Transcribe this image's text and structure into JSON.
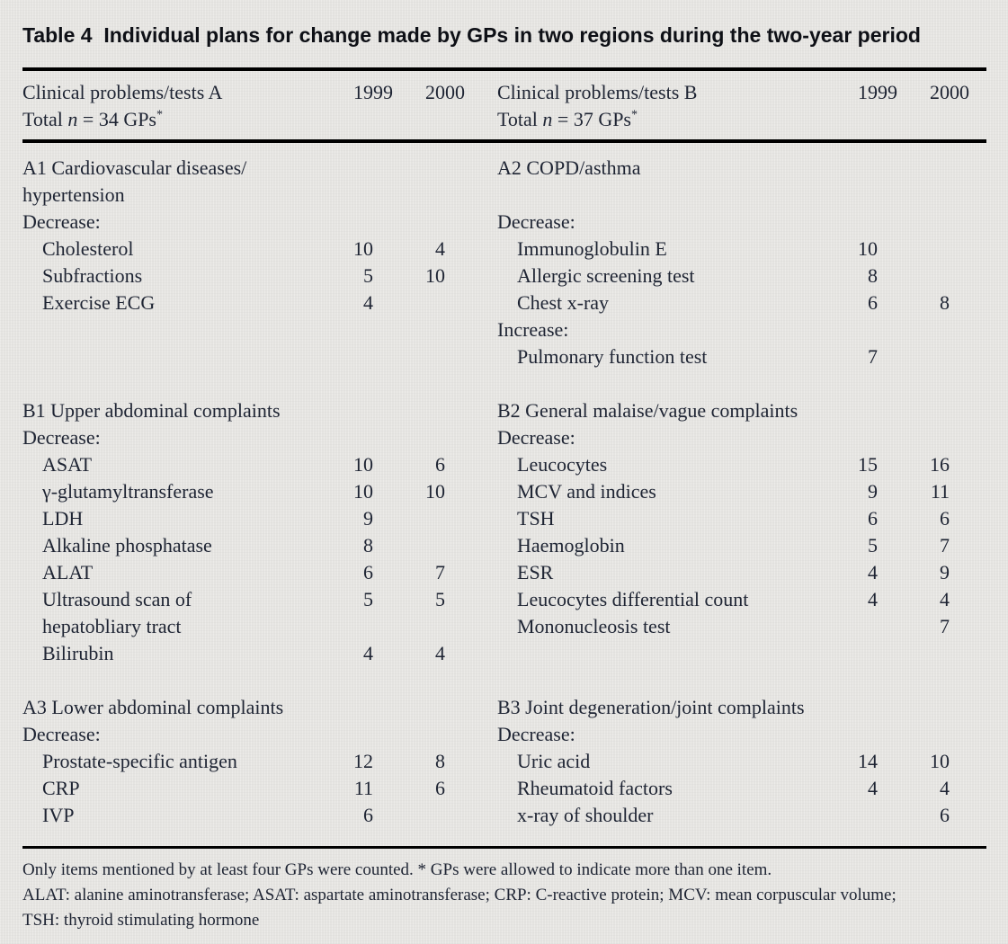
{
  "title": "Table 4  Individual plans for change made by GPs in two regions during the two-year period",
  "columns": {
    "a": {
      "header": {
        "line1": "Clinical problems/tests A",
        "total_pre": "Total ",
        "total_n": "n",
        "total_post": " = 34 GPs",
        "star": "*",
        "y1999": "1999",
        "y2000": "2000"
      },
      "rows": [
        {
          "type": "section",
          "label": "A1 Cardiovascular diseases/"
        },
        {
          "type": "section",
          "label": "hypertension"
        },
        {
          "type": "group",
          "label": "Decrease:"
        },
        {
          "type": "item",
          "label": "Cholesterol",
          "v1999": "10",
          "v2000": "4"
        },
        {
          "type": "item",
          "label": "Subfractions",
          "v1999": "5",
          "v2000": "10"
        },
        {
          "type": "item",
          "label": "Exercise ECG",
          "v1999": "4",
          "v2000": ""
        },
        {
          "type": "blank"
        },
        {
          "type": "blank"
        },
        {
          "type": "blank"
        },
        {
          "type": "section",
          "label": "B1 Upper abdominal complaints"
        },
        {
          "type": "group",
          "label": "Decrease:"
        },
        {
          "type": "item",
          "label": "ASAT",
          "v1999": "10",
          "v2000": "6"
        },
        {
          "type": "item",
          "label": "γ-glutamyltransferase",
          "v1999": "10",
          "v2000": "10"
        },
        {
          "type": "item",
          "label": "LDH",
          "v1999": "9",
          "v2000": ""
        },
        {
          "type": "item",
          "label": "Alkaline phosphatase",
          "v1999": "8",
          "v2000": ""
        },
        {
          "type": "item",
          "label": "ALAT",
          "v1999": "6",
          "v2000": "7"
        },
        {
          "type": "item",
          "label": "Ultrasound scan of",
          "v1999": "5",
          "v2000": "5"
        },
        {
          "type": "item",
          "label": "hepatobliary tract",
          "v1999": "",
          "v2000": ""
        },
        {
          "type": "item",
          "label": "Bilirubin",
          "v1999": "4",
          "v2000": "4"
        },
        {
          "type": "blank"
        },
        {
          "type": "section",
          "label": "A3 Lower abdominal complaints"
        },
        {
          "type": "group",
          "label": "Decrease:"
        },
        {
          "type": "item",
          "label": "Prostate-specific antigen",
          "v1999": "12",
          "v2000": "8"
        },
        {
          "type": "item",
          "label": "CRP",
          "v1999": "11",
          "v2000": "6"
        },
        {
          "type": "item",
          "label": "IVP",
          "v1999": "6",
          "v2000": ""
        }
      ]
    },
    "b": {
      "header": {
        "line1": "Clinical problems/tests B",
        "total_pre": "Total ",
        "total_n": "n",
        "total_post": " = 37 GPs",
        "star": "*",
        "y1999": "1999",
        "y2000": "2000"
      },
      "rows": [
        {
          "type": "section",
          "label": "A2 COPD/asthma"
        },
        {
          "type": "blank"
        },
        {
          "type": "group",
          "label": "Decrease:"
        },
        {
          "type": "item",
          "label": "Immunoglobulin E",
          "v1999": "10",
          "v2000": ""
        },
        {
          "type": "item",
          "label": "Allergic screening test",
          "v1999": "8",
          "v2000": ""
        },
        {
          "type": "item",
          "label": "Chest x-ray",
          "v1999": "6",
          "v2000": "8"
        },
        {
          "type": "group",
          "label": "Increase:"
        },
        {
          "type": "item",
          "label": "Pulmonary function test",
          "v1999": "7",
          "v2000": ""
        },
        {
          "type": "blank"
        },
        {
          "type": "section",
          "label": "B2 General malaise/vague complaints"
        },
        {
          "type": "group",
          "label": "Decrease:"
        },
        {
          "type": "item",
          "label": "Leucocytes",
          "v1999": "15",
          "v2000": "16"
        },
        {
          "type": "item",
          "label": "MCV and indices",
          "v1999": "9",
          "v2000": "11"
        },
        {
          "type": "item",
          "label": "TSH",
          "v1999": "6",
          "v2000": "6"
        },
        {
          "type": "item",
          "label": "Haemoglobin",
          "v1999": "5",
          "v2000": "7"
        },
        {
          "type": "item",
          "label": "ESR",
          "v1999": "4",
          "v2000": "9"
        },
        {
          "type": "item",
          "label": "Leucocytes differential count",
          "v1999": "4",
          "v2000": "4"
        },
        {
          "type": "item",
          "label": "Mononucleosis test",
          "v1999": "",
          "v2000": "7"
        },
        {
          "type": "blank"
        },
        {
          "type": "blank"
        },
        {
          "type": "section",
          "label": "B3 Joint degeneration/joint complaints"
        },
        {
          "type": "group",
          "label": "Decrease:"
        },
        {
          "type": "item",
          "label": "Uric acid",
          "v1999": "14",
          "v2000": "10"
        },
        {
          "type": "item",
          "label": "Rheumatoid factors",
          "v1999": "4",
          "v2000": "4"
        },
        {
          "type": "item",
          "label": "x-ray of shoulder",
          "v1999": "",
          "v2000": "6"
        }
      ]
    }
  },
  "footnotes": [
    "Only items mentioned by at least four GPs were counted. * GPs were allowed to indicate more than one item.",
    "ALAT: alanine aminotransferase; ASAT: aspartate aminotransferase; CRP: C-reactive protein; MCV: mean corpuscular volume;",
    "TSH: thyroid stimulating hormone"
  ],
  "colors": {
    "background": "#e5e4e1",
    "text": "#1e2433",
    "title_text": "#0e1016",
    "rule": "#000000"
  }
}
